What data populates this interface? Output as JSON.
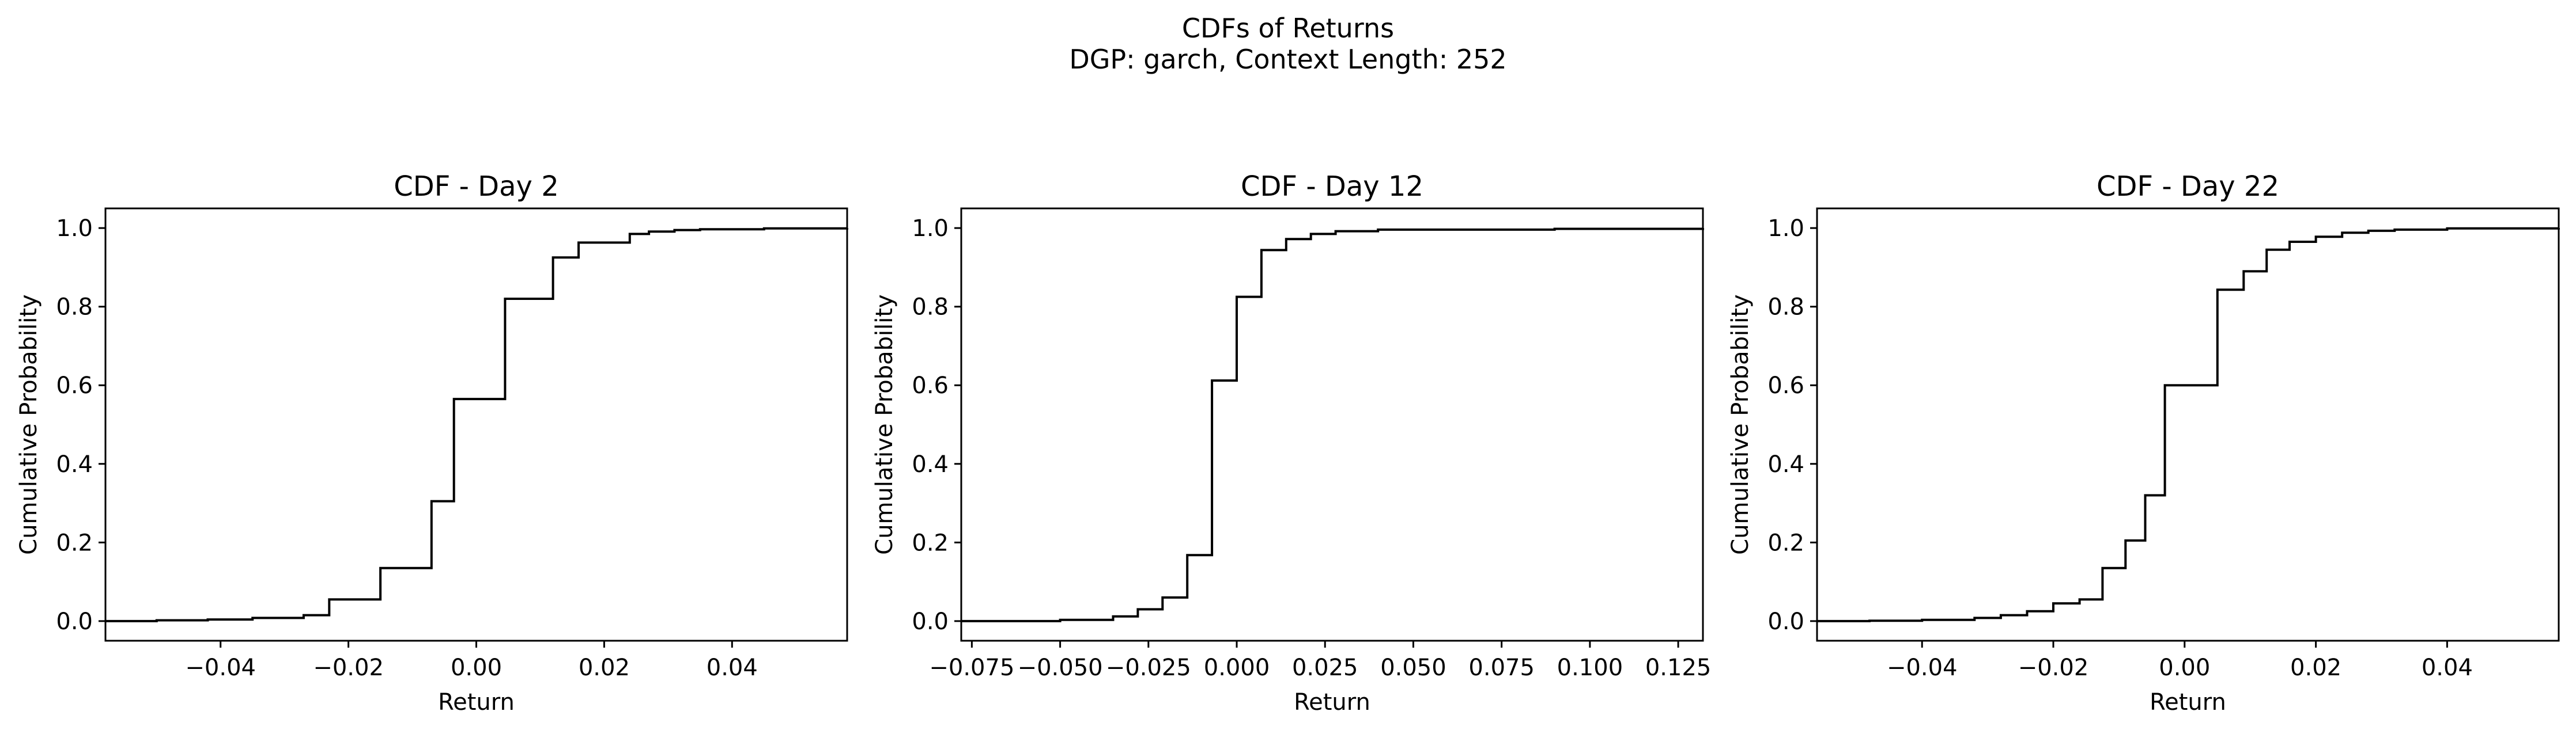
{
  "figure": {
    "title_line1": "CDFs of Returns",
    "title_line2": "DGP: garch, Context Length: 252"
  },
  "chart_data": [
    {
      "type": "line",
      "step": true,
      "title": "CDF - Day 2",
      "xlabel": "Return",
      "ylabel": "Cumulative Probability",
      "xlim": [
        -0.058,
        0.058
      ],
      "ylim": [
        -0.05,
        1.05
      ],
      "xticks": [
        -0.04,
        -0.02,
        0.0,
        0.02,
        0.04
      ],
      "xtick_labels": [
        "−0.04",
        "−0.02",
        "0.00",
        "0.02",
        "0.04"
      ],
      "yticks": [
        0.0,
        0.2,
        0.4,
        0.6,
        0.8,
        1.0
      ],
      "ytick_labels": [
        "0.0",
        "0.2",
        "0.4",
        "0.6",
        "0.8",
        "1.0"
      ],
      "grid": false,
      "color": "#000000",
      "x": [
        -0.058,
        -0.05,
        -0.042,
        -0.035,
        -0.027,
        -0.023,
        -0.015,
        -0.007,
        -0.0035,
        0.0045,
        0.012,
        0.016,
        0.024,
        0.027,
        0.031,
        0.035,
        0.045,
        0.058
      ],
      "y": [
        0.0,
        0.002,
        0.004,
        0.008,
        0.015,
        0.055,
        0.135,
        0.305,
        0.565,
        0.82,
        0.925,
        0.963,
        0.985,
        0.991,
        0.995,
        0.997,
        0.999,
        1.0
      ]
    },
    {
      "type": "line",
      "step": true,
      "title": "CDF - Day 12",
      "xlabel": "Return",
      "ylabel": "Cumulative Probability",
      "xlim": [
        -0.078,
        0.132
      ],
      "ylim": [
        -0.05,
        1.05
      ],
      "xticks": [
        -0.075,
        -0.05,
        -0.025,
        0.0,
        0.025,
        0.05,
        0.075,
        0.1,
        0.125
      ],
      "xtick_labels": [
        "−0.075",
        "−0.050",
        "−0.025",
        "0.000",
        "0.025",
        "0.050",
        "0.075",
        "0.100",
        "0.125"
      ],
      "yticks": [
        0.0,
        0.2,
        0.4,
        0.6,
        0.8,
        1.0
      ],
      "ytick_labels": [
        "0.0",
        "0.2",
        "0.4",
        "0.6",
        "0.8",
        "1.0"
      ],
      "grid": false,
      "color": "#000000",
      "x": [
        -0.078,
        -0.05,
        -0.035,
        -0.028,
        -0.021,
        -0.014,
        -0.007,
        0.0,
        0.007,
        0.014,
        0.021,
        0.028,
        0.04,
        0.09,
        0.132
      ],
      "y": [
        0.0,
        0.003,
        0.012,
        0.03,
        0.06,
        0.168,
        0.612,
        0.825,
        0.944,
        0.972,
        0.985,
        0.992,
        0.996,
        0.998,
        1.0
      ]
    },
    {
      "type": "line",
      "step": true,
      "title": "CDF - Day 22",
      "xlabel": "Return",
      "ylabel": "Cumulative Probability",
      "xlim": [
        -0.056,
        0.057
      ],
      "ylim": [
        -0.05,
        1.05
      ],
      "xticks": [
        -0.04,
        -0.02,
        0.0,
        0.02,
        0.04
      ],
      "xtick_labels": [
        "−0.04",
        "−0.02",
        "0.00",
        "0.02",
        "0.04"
      ],
      "yticks": [
        0.0,
        0.2,
        0.4,
        0.6,
        0.8,
        1.0
      ],
      "ytick_labels": [
        "0.0",
        "0.2",
        "0.4",
        "0.6",
        "0.8",
        "1.0"
      ],
      "grid": false,
      "color": "#000000",
      "x": [
        -0.056,
        -0.048,
        -0.04,
        -0.032,
        -0.028,
        -0.024,
        -0.02,
        -0.016,
        -0.0125,
        -0.009,
        -0.006,
        -0.003,
        0.005,
        0.009,
        0.0125,
        0.016,
        0.02,
        0.024,
        0.028,
        0.032,
        0.04,
        0.057
      ],
      "y": [
        0.0,
        0.001,
        0.003,
        0.008,
        0.015,
        0.025,
        0.045,
        0.055,
        0.135,
        0.205,
        0.32,
        0.6,
        0.843,
        0.89,
        0.945,
        0.965,
        0.978,
        0.988,
        0.993,
        0.996,
        0.999,
        1.0
      ]
    }
  ]
}
